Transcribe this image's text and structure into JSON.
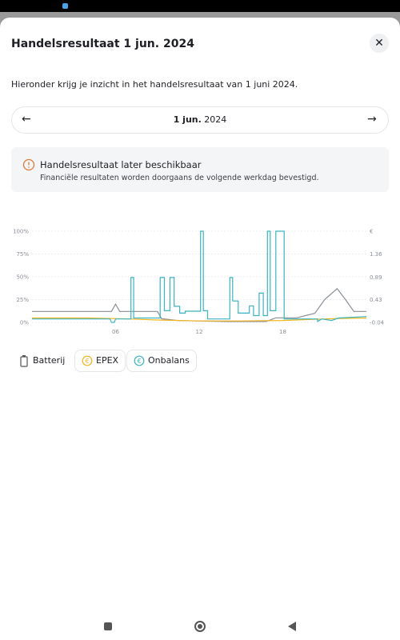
{
  "header": {
    "title": "Handelsresultaat 1 jun. 2024"
  },
  "intro": "Hieronder krijg je inzicht in het handelsresultaat van 1 juni 2024.",
  "date_nav": {
    "day": "1 jun.",
    "year": "2024"
  },
  "notice": {
    "title": "Handelsresultaat later beschikbaar",
    "text": "Financiële resultaten worden doorgaans de volgende werkdag bevestigd."
  },
  "chart_data": {
    "type": "line",
    "xlim": [
      0,
      24
    ],
    "xticks": [
      {
        "value": 6,
        "label": "06"
      },
      {
        "value": 12,
        "label": "12"
      },
      {
        "value": 18,
        "label": "18"
      }
    ],
    "ylim": [
      0,
      100
    ],
    "yticks": [
      {
        "value": 0,
        "label": "0%"
      },
      {
        "value": 25,
        "label": "25%"
      },
      {
        "value": 50,
        "label": "50%"
      },
      {
        "value": 75,
        "label": "75%"
      },
      {
        "value": 100,
        "label": "100%"
      }
    ],
    "y2lim": [
      -0.04,
      1.83
    ],
    "y2ticks": [
      -0.04,
      0.43,
      0.89,
      1.36
    ],
    "y2_label": "€",
    "grid": true,
    "series": [
      {
        "name": "Batterij",
        "color": "#8a8f98",
        "axis": "y",
        "x": [
          0,
          5.7,
          6.0,
          6.3,
          9.0,
          9.3,
          10.5,
          14,
          16.8,
          17.5,
          19,
          20.3,
          21.0,
          21.9,
          22.5,
          23.1,
          24
        ],
        "values": [
          12,
          12,
          20,
          12,
          12,
          4,
          2,
          1,
          1,
          5,
          5,
          10,
          25,
          37,
          25,
          12,
          12
        ]
      },
      {
        "name": "EPEX",
        "color": "#f2b41c",
        "axis": "y2",
        "x": [
          0,
          4,
          7,
          9,
          12,
          15,
          18,
          20,
          22,
          24
        ],
        "values": [
          0.05,
          0.05,
          0.03,
          0.01,
          -0.01,
          -0.01,
          0.0,
          0.02,
          0.04,
          0.05
        ]
      },
      {
        "name": "Onbalans",
        "color": "#3bb4c1",
        "axis": "y2",
        "x": [
          0,
          5.6,
          5.7,
          5.9,
          6.0,
          7.1,
          7.1,
          7.3,
          7.3,
          9.2,
          9.2,
          9.5,
          9.5,
          9.9,
          9.9,
          10.2,
          10.2,
          10.6,
          10.6,
          11.0,
          11.0,
          12.1,
          12.1,
          12.3,
          12.3,
          12.6,
          12.6,
          14.2,
          14.2,
          14.4,
          14.4,
          14.8,
          14.8,
          15.6,
          15.6,
          15.9,
          15.9,
          16.3,
          16.3,
          16.6,
          16.6,
          16.9,
          16.9,
          17.1,
          17.1,
          17.5,
          17.5,
          18.1,
          18.1,
          20.5,
          20.5,
          20.8,
          21.5,
          22,
          24
        ],
        "values": [
          0.03,
          0.03,
          -0.04,
          -0.04,
          0.03,
          0.03,
          0.88,
          0.88,
          0.05,
          0.05,
          0.88,
          0.88,
          0.2,
          0.2,
          0.88,
          0.88,
          0.29,
          0.29,
          0.15,
          0.15,
          0.19,
          0.19,
          1.83,
          1.83,
          0.2,
          0.2,
          0.03,
          0.03,
          0.88,
          0.88,
          0.4,
          0.4,
          0.15,
          0.15,
          0.3,
          0.3,
          0.1,
          0.1,
          0.56,
          0.56,
          0.1,
          0.1,
          1.83,
          1.83,
          0.2,
          0.2,
          1.83,
          1.83,
          0.03,
          0.03,
          -0.02,
          0.03,
          0.0,
          0.05,
          0.08
        ]
      }
    ]
  }
}
